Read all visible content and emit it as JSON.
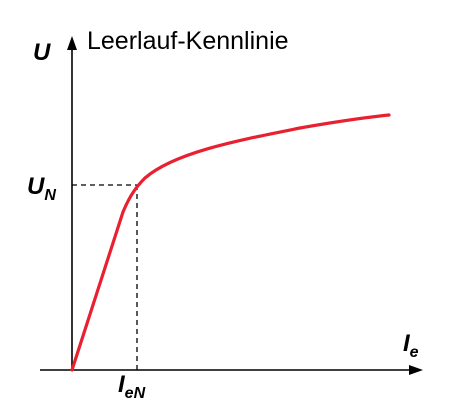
{
  "title": "Leerlauf-Kennlinie",
  "y_axis_label": "U",
  "x_axis_label": {
    "main": "I",
    "sub": "e"
  },
  "y_marker_label": {
    "main": "U",
    "sub": "N"
  },
  "x_marker_label": {
    "main": "I",
    "sub": "eN"
  },
  "colors": {
    "curve": "#e8202f",
    "axes": "#000000"
  }
}
